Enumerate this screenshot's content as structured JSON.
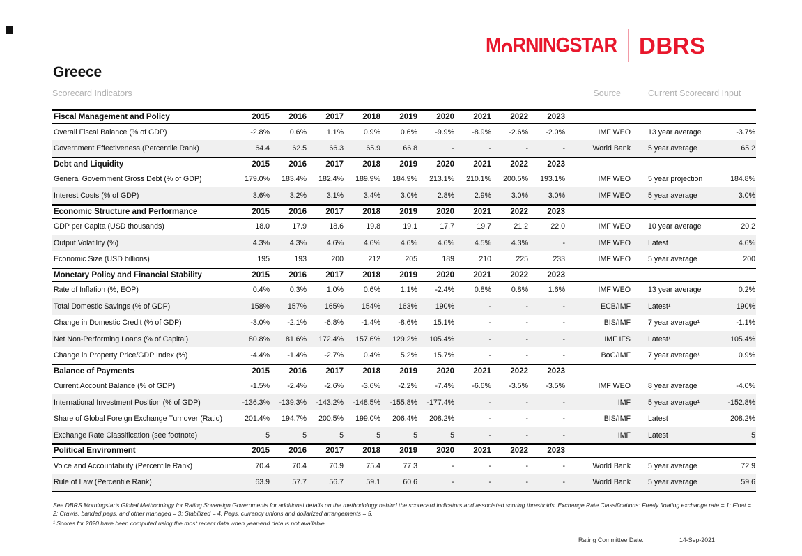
{
  "colors": {
    "brand_red": "#e8172c",
    "row_alt": "#f0f0f0",
    "muted_gray": "#b1b1b1"
  },
  "brand": {
    "morningstar_m": "M",
    "morningstar_rest": "RNINGSTAR",
    "dbrs": "DBRS"
  },
  "page": {
    "title": "Greece",
    "subtitle": "Scorecard Indicators",
    "source_header": "Source",
    "input_header": "Current Scorecard Input"
  },
  "table": {
    "years": [
      "2015",
      "2016",
      "2017",
      "2018",
      "2019",
      "2020",
      "2021",
      "2022",
      "2023"
    ],
    "sections": [
      {
        "title": "Fiscal Management and Policy",
        "rows": [
          {
            "label": "Overall Fiscal Balance (% of GDP)",
            "values": [
              "-2.8%",
              "0.6%",
              "1.1%",
              "0.9%",
              "0.6%",
              "-9.9%",
              "-8.9%",
              "-2.6%",
              "-2.0%"
            ],
            "source": "IMF WEO",
            "input_method": "13 year average",
            "input_value": "-3.7%"
          },
          {
            "label": "Government Effectiveness (Percentile Rank)",
            "values": [
              "64.4",
              "62.5",
              "66.3",
              "65.9",
              "66.8",
              "-",
              "-",
              "-",
              "-"
            ],
            "source": "World Bank",
            "input_method": "5 year average",
            "input_value": "65.2"
          }
        ]
      },
      {
        "title": "Debt and Liquidity",
        "rows": [
          {
            "label": "General Government Gross Debt (% of GDP)",
            "values": [
              "179.0%",
              "183.4%",
              "182.4%",
              "189.9%",
              "184.9%",
              "213.1%",
              "210.1%",
              "200.5%",
              "193.1%"
            ],
            "source": "IMF WEO",
            "input_method": "5 year projection",
            "input_value": "184.8%"
          },
          {
            "label": "Interest Costs (% of GDP)",
            "values": [
              "3.6%",
              "3.2%",
              "3.1%",
              "3.4%",
              "3.0%",
              "2.8%",
              "2.9%",
              "3.0%",
              "3.0%"
            ],
            "source": "IMF WEO",
            "input_method": "5 year average",
            "input_value": "3.0%"
          }
        ]
      },
      {
        "title": "Economic Structure and Performance",
        "rows": [
          {
            "label": "GDP per Capita (USD thousands)",
            "values": [
              "18.0",
              "17.9",
              "18.6",
              "19.8",
              "19.1",
              "17.7",
              "19.7",
              "21.2",
              "22.0"
            ],
            "source": "IMF WEO",
            "input_method": "10 year average",
            "input_value": "20.2"
          },
          {
            "label": "Output Volatility (%)",
            "values": [
              "4.3%",
              "4.3%",
              "4.6%",
              "4.6%",
              "4.6%",
              "4.6%",
              "4.5%",
              "4.3%",
              "-"
            ],
            "source": "IMF WEO",
            "input_method": "Latest",
            "input_value": "4.6%"
          },
          {
            "label": "Economic Size (USD billions)",
            "values": [
              "195",
              "193",
              "200",
              "212",
              "205",
              "189",
              "210",
              "225",
              "233"
            ],
            "source": "IMF WEO",
            "input_method": "5 year average",
            "input_value": "200"
          }
        ]
      },
      {
        "title": "Monetary Policy and Financial Stability",
        "rows": [
          {
            "label": "Rate of Inflation (%, EOP)",
            "values": [
              "0.4%",
              "0.3%",
              "1.0%",
              "0.6%",
              "1.1%",
              "-2.4%",
              "0.8%",
              "0.8%",
              "1.6%"
            ],
            "source": "IMF WEO",
            "input_method": "13 year average",
            "input_value": "0.2%"
          },
          {
            "label": "Total Domestic Savings (% of GDP)",
            "values": [
              "158%",
              "157%",
              "165%",
              "154%",
              "163%",
              "190%",
              "-",
              "-",
              "-"
            ],
            "source": "ECB/IMF",
            "input_method": "Latest¹",
            "input_value": "190%"
          },
          {
            "label": "Change in Domestic Credit (% of GDP)",
            "values": [
              "-3.0%",
              "-2.1%",
              "-6.8%",
              "-1.4%",
              "-8.6%",
              "15.1%",
              "-",
              "-",
              "-"
            ],
            "source": "BIS/IMF",
            "input_method": "7 year average¹",
            "input_value": "-1.1%"
          },
          {
            "label": "Net Non-Performing Loans (% of Capital)",
            "values": [
              "80.8%",
              "81.6%",
              "172.4%",
              "157.6%",
              "129.2%",
              "105.4%",
              "-",
              "-",
              "-"
            ],
            "source": "IMF IFS",
            "input_method": "Latest¹",
            "input_value": "105.4%"
          },
          {
            "label": "Change in Property Price/GDP Index (%)",
            "values": [
              "-4.4%",
              "-1.4%",
              "-2.7%",
              "0.4%",
              "5.2%",
              "15.7%",
              "-",
              "-",
              "-"
            ],
            "source": "BoG/IMF",
            "input_method": "7 year average¹",
            "input_value": "0.9%"
          }
        ]
      },
      {
        "title": "Balance of Payments",
        "rows": [
          {
            "label": "Current Account Balance (% of GDP)",
            "values": [
              "-1.5%",
              "-2.4%",
              "-2.6%",
              "-3.6%",
              "-2.2%",
              "-7.4%",
              "-6.6%",
              "-3.5%",
              "-3.5%"
            ],
            "source": "IMF WEO",
            "input_method": "8 year average",
            "input_value": "-4.0%"
          },
          {
            "label": "International Investment Position (% of GDP)",
            "values": [
              "-136.3%",
              "-139.3%",
              "-143.2%",
              "-148.5%",
              "-155.8%",
              "-177.4%",
              "-",
              "-",
              "-"
            ],
            "source": "IMF",
            "input_method": "5 year average¹",
            "input_value": "-152.8%"
          },
          {
            "label": "Share of Global Foreign Exchange Turnover (Ratio)",
            "values": [
              "201.4%",
              "194.7%",
              "200.5%",
              "199.0%",
              "206.4%",
              "208.2%",
              "-",
              "-",
              "-"
            ],
            "source": "BIS/IMF",
            "input_method": "Latest",
            "input_value": "208.2%"
          },
          {
            "label": "Exchange Rate Classification (see footnote)",
            "values": [
              "5",
              "5",
              "5",
              "5",
              "5",
              "5",
              "-",
              "-",
              "-"
            ],
            "source": "IMF",
            "input_method": "Latest",
            "input_value": "5"
          }
        ]
      },
      {
        "title": "Political Environment",
        "rows": [
          {
            "label": "Voice and Accountability (Percentile Rank)",
            "values": [
              "70.4",
              "70.4",
              "70.9",
              "75.4",
              "77.3",
              "-",
              "-",
              "-",
              "-"
            ],
            "source": "World Bank",
            "input_method": "5 year average",
            "input_value": "72.9"
          },
          {
            "label": "Rule of Law (Percentile Rank)",
            "values": [
              "63.9",
              "57.7",
              "56.7",
              "59.1",
              "60.6",
              "-",
              "-",
              "-",
              "-"
            ],
            "source": "World Bank",
            "input_method": "5 year average",
            "input_value": "59.6"
          }
        ]
      }
    ]
  },
  "footnotes": {
    "methodology": "See DBRS Morningstar's Global Methodology for Rating Sovereign Governments for additional details on the methodology behind the scorecard indicators and associated scoring thresholds. Exchange Rate Classifications: Freely floating exchange rate = 1; Float = 2; Crawls, banded pegs, and other managed = 3; Stabilized = 4; Pegs, currency unions and dollarized arrangements = 5.",
    "scores_note": "¹ Scores for 2020 have been computed using the most recent data when year-end data is not available."
  },
  "footer": {
    "label": "Rating Committee Date:",
    "value": "14-Sep-2021"
  }
}
